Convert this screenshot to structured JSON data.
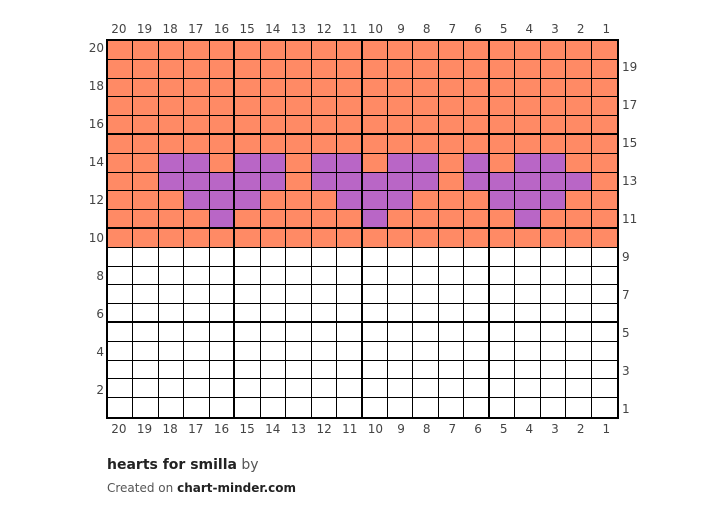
{
  "pattern": {
    "title": "hearts for smilla",
    "by_label": "by",
    "credit_prefix": "Created on",
    "credit_site": "chart-minder.com"
  },
  "colors": {
    "O": "#FF8A65",
    "P": "#B966C6",
    "W": "#FFFFFF",
    "grid_line": "#000000"
  },
  "grid": {
    "columns": 20,
    "rows": 20,
    "column_labels": [
      "20",
      "19",
      "18",
      "17",
      "16",
      "15",
      "14",
      "13",
      "12",
      "11",
      "10",
      "9",
      "8",
      "7",
      "6",
      "5",
      "4",
      "3",
      "2",
      "1"
    ],
    "row_labels_left": [
      "20",
      "18",
      "16",
      "14",
      "12",
      "10",
      "8",
      "6",
      "4",
      "2"
    ],
    "row_labels_right": [
      "19",
      "17",
      "15",
      "13",
      "11",
      "9",
      "7",
      "5",
      "3",
      "1"
    ],
    "thick_column_after": [
      5,
      10,
      15
    ],
    "thick_row_after": [
      5,
      10,
      15
    ],
    "cells": [
      "OOOOOOOOOOOOOOOOOOOO",
      "OOOOOOOOOOOOOOOOOOOO",
      "OOOOOOOOOOOOOOOOOOOO",
      "OOOOOOOOOOOOOOOOOOOO",
      "OOOOOOOOOOOOOOOOOOOO",
      "OOOOOOOOOOOOOOOOOOOO",
      "OOPPOPPOPPOPPOPOPPOO",
      "OOPPPPPOPPPPPOPPPPPO",
      "OOOPPPOOOPPPOOOPPPOO",
      "OOOOPOOOOOPOOOOOPOOO",
      "OOOOOOOOOOOOOOOOOOOO",
      "WWWWWWWWWWWWWWWWWWWW",
      "WWWWWWWWWWWWWWWWWWWW",
      "WWWWWWWWWWWWWWWWWWWW",
      "WWWWWWWWWWWWWWWWWWWW",
      "WWWWWWWWWWWWWWWWWWWW",
      "WWWWWWWWWWWWWWWWWWWW",
      "WWWWWWWWWWWWWWWWWWWW",
      "WWWWWWWWWWWWWWWWWWWW",
      "WWWWWWWWWWWWWWWWWWWW"
    ]
  }
}
